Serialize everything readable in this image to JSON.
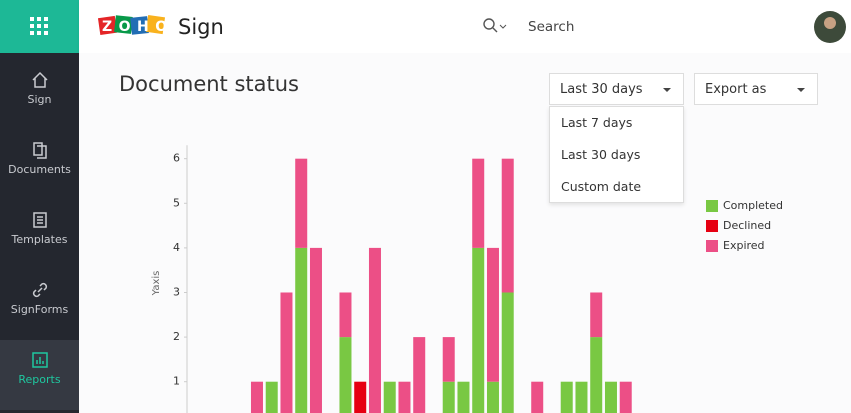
{
  "sidebar": {
    "items": [
      "Sign",
      "Documents",
      "Templates",
      "SignForms",
      "Reports"
    ]
  },
  "header": {
    "logo": "ZOHO",
    "brand": "Sign",
    "search": "Search"
  },
  "page": {
    "title": "Document status",
    "range": "Last 30 days",
    "export": "Export as",
    "range_options": [
      "Last 7 days",
      "Last 30 days",
      "Custom date"
    ]
  },
  "chart_data": {
    "type": "stacked_bar",
    "y_label": "Yaxis",
    "categories": [
      null,
      null,
      null,
      null,
      null,
      null,
      null,
      null,
      null,
      null,
      null,
      null,
      null,
      null,
      null,
      null,
      null,
      null,
      null,
      null,
      null,
      null,
      null,
      null,
      null,
      null,
      null,
      null,
      null,
      null
    ],
    "series": [
      {
        "name": "Completed",
        "color": "#79c843",
        "values": [
          0,
          0,
          0,
          0,
          0,
          1,
          0,
          4,
          0,
          0,
          2,
          0,
          0,
          1,
          0,
          0,
          0,
          1,
          1,
          4,
          1,
          3,
          0,
          0,
          0,
          1,
          1,
          2,
          1,
          0
        ]
      },
      {
        "name": "Declined",
        "color": "#e60012",
        "values": [
          0,
          0,
          0,
          0,
          0,
          0,
          0,
          0,
          0,
          0,
          0,
          1,
          0,
          0,
          0,
          0,
          0,
          0,
          0,
          0,
          0,
          0,
          0,
          0,
          0,
          0,
          0,
          0,
          0,
          0
        ]
      },
      {
        "name": "Expired",
        "color": "#ec4f86",
        "values": [
          0,
          0,
          0,
          0,
          1,
          0,
          3,
          2,
          4,
          0,
          1,
          0,
          4,
          0,
          1,
          2,
          0,
          1,
          0,
          2,
          3,
          3,
          0,
          1,
          0,
          0,
          0,
          1,
          0,
          1
        ]
      }
    ],
    "ylim": [
      0,
      6.3
    ],
    "yticks": [
      1,
      2,
      3,
      4,
      5,
      6
    ],
    "grid": false,
    "legend": "right"
  }
}
